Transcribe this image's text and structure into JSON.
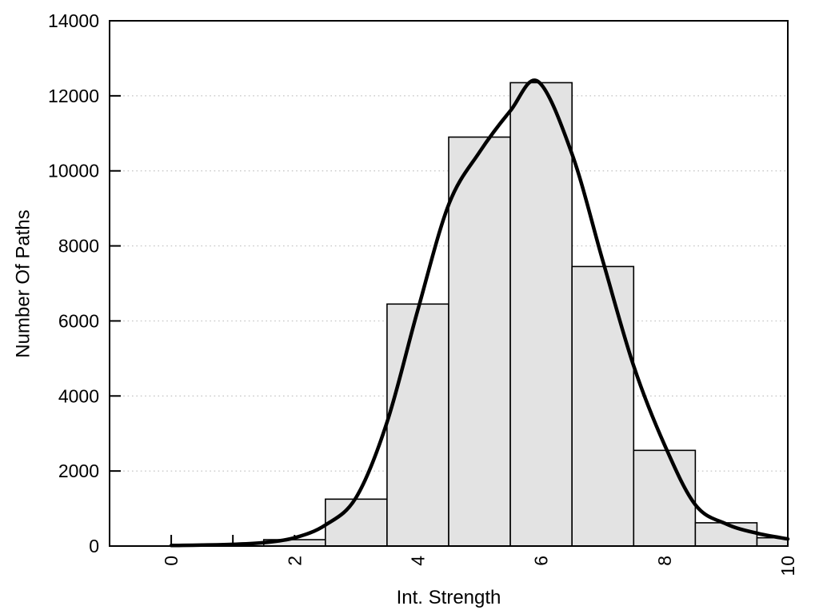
{
  "figure": {
    "xlabel": "Int. Strength",
    "ylabel": "Number Of Paths"
  },
  "colors": {
    "background": "#ffffff",
    "bar_fill": "#e3e3e3",
    "bar_stroke": "#000000",
    "curve": "#000000",
    "grid": "#c9c9c9",
    "axis": "#000000",
    "text": "#000000"
  },
  "chart_data": {
    "type": "bar",
    "subtype": "histogram_with_density_curve",
    "title": "",
    "xlabel": "Int. Strength",
    "ylabel": "Number Of Paths",
    "xlim": [
      -1,
      10
    ],
    "ylim": [
      0,
      14000
    ],
    "grid": "horizontal-dotted",
    "legend": "none",
    "bin_width": 1,
    "bar_centers": [
      0,
      1,
      2,
      3,
      4,
      5,
      6,
      7,
      8,
      9,
      10
    ],
    "bar_values": [
      0,
      0,
      170,
      1250,
      6450,
      10900,
      12350,
      7450,
      2550,
      620,
      220
    ],
    "curve_x": [
      0,
      0.5,
      1,
      1.5,
      2,
      2.5,
      3,
      3.5,
      4,
      4.5,
      5,
      5.5,
      5.95,
      6.5,
      7,
      7.5,
      8,
      8.5,
      9,
      9.5,
      10
    ],
    "curve_y": [
      15,
      25,
      45,
      90,
      220,
      560,
      1300,
      3300,
      6300,
      9100,
      10500,
      11600,
      12380,
      10450,
      7600,
      4800,
      2700,
      1100,
      590,
      340,
      190
    ],
    "x_ticks": [
      0,
      1,
      2,
      3,
      4,
      5,
      6,
      7,
      8,
      9,
      10
    ],
    "x_labeled_ticks": [
      0,
      2,
      4,
      6,
      8,
      10
    ],
    "x_tick_labels": [
      "0",
      "2",
      "4",
      "6",
      "8",
      "10"
    ],
    "x_tick_label_rotation": -90,
    "y_ticks": [
      0,
      2000,
      4000,
      6000,
      8000,
      10000,
      12000,
      14000
    ],
    "y_tick_labels": [
      "0",
      "2000",
      "4000",
      "6000",
      "8000",
      "10000",
      "12000",
      "14000"
    ],
    "y_grid_values": [
      2000,
      4000,
      6000,
      8000,
      10000,
      12000
    ]
  }
}
